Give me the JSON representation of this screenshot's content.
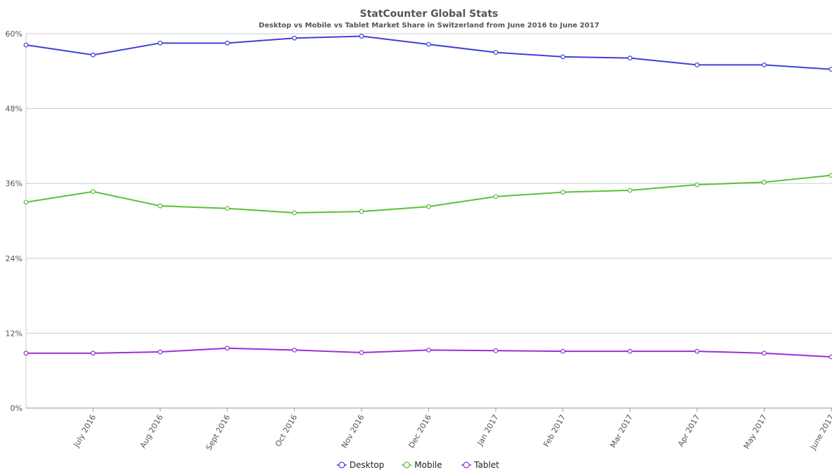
{
  "chart_data": {
    "type": "line",
    "title": "StatCounter Global Stats",
    "subtitle": "Desktop vs Mobile vs Tablet Market Share in Switzerland from June 2016 to June 2017",
    "categories": [
      null,
      "July 2016",
      "Aug 2016",
      "Sept 2016",
      "Oct 2016",
      "Nov 2016",
      "Dec 2016",
      "Jan 2017",
      "Feb 2017",
      "Mar 2017",
      "Apr 2017",
      "May 2017",
      "June 2017"
    ],
    "series": [
      {
        "name": "Desktop",
        "color": "#4040d8",
        "values": [
          58.2,
          56.6,
          58.5,
          58.5,
          59.3,
          59.6,
          58.3,
          57.0,
          56.3,
          56.1,
          55.0,
          55.0,
          54.3
        ]
      },
      {
        "name": "Mobile",
        "color": "#5cbf3a",
        "values": [
          33.0,
          34.7,
          32.4,
          32.0,
          31.3,
          31.5,
          32.3,
          33.9,
          34.6,
          34.9,
          35.8,
          36.2,
          37.3
        ]
      },
      {
        "name": "Tablet",
        "color": "#9a30d8",
        "values": [
          8.8,
          8.8,
          9.0,
          9.6,
          9.3,
          8.9,
          9.3,
          9.2,
          9.1,
          9.1,
          9.1,
          8.8,
          8.2
        ]
      }
    ],
    "ylim": [
      0,
      60
    ],
    "yticks": [
      {
        "value": 0,
        "label": "0%"
      },
      {
        "value": 12,
        "label": "12%"
      },
      {
        "value": 24,
        "label": "24%"
      },
      {
        "value": 36,
        "label": "36%"
      },
      {
        "value": 48,
        "label": "48%"
      },
      {
        "value": 60,
        "label": "60%"
      }
    ],
    "grid": true,
    "legend": "bottom"
  }
}
